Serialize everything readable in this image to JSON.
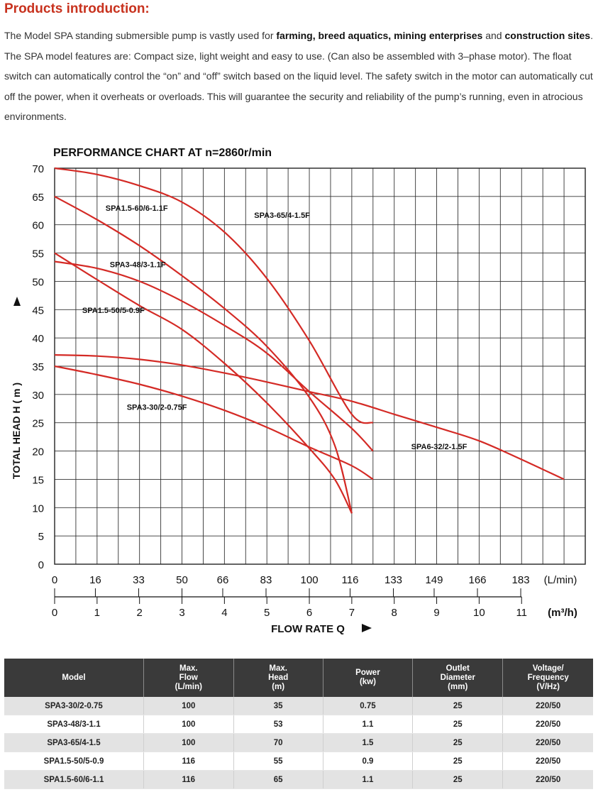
{
  "page": {
    "title": "Products introduction:",
    "intro": [
      {
        "t": "The Model SPA standing submersible pump is vastly used for ",
        "b": false
      },
      {
        "t": "farming, breed aquatics, mining enterprises",
        "b": true
      },
      {
        "t": " and ",
        "b": false
      },
      {
        "t": "construction sites",
        "b": true
      },
      {
        "t": ". The SPA model features are: Compact size, light weight and easy to use. (Can also be assembled with 3–phase motor). The float switch can automatically control the “on” and “off” switch based on the liquid level. The safety switch in the motor can automatically cut off the power, when it overheats or overloads. This will guarantee the security and reliability of the pump’s running, even in atrocious environments.",
        "b": false
      }
    ]
  },
  "chart_data": {
    "type": "line",
    "title": "PERFORMANCE CHART AT n=2860r/min",
    "xlabel": "FLOW RATE Q",
    "ylabel": "TOTAL HEAD H ( m )",
    "xlim": [
      0,
      12.5
    ],
    "ylim": [
      0,
      70
    ],
    "grid": true,
    "x_unit_m3h": "(m³/h)",
    "x_unit_lmin": "(L/min)",
    "x_ticks_m3h": [
      "0",
      "1",
      "2",
      "3",
      "4",
      "5",
      "6",
      "7",
      "8",
      "9",
      "10",
      "11"
    ],
    "x_ticks_lmin": [
      "0",
      "16",
      "33",
      "50",
      "66",
      "83",
      "100",
      "116",
      "133",
      "149",
      "166",
      "183"
    ],
    "y_ticks": [
      "0",
      "5",
      "10",
      "15",
      "20",
      "25",
      "30",
      "35",
      "40",
      "45",
      "50",
      "55",
      "60",
      "65",
      "70"
    ],
    "line_color": "#d42a25",
    "series": [
      {
        "name": "SPA3-65/4-1.5F",
        "label_at": [
          4.7,
          61.2
        ],
        "points": [
          [
            0,
            70
          ],
          [
            1,
            68.9
          ],
          [
            2,
            66.9
          ],
          [
            3,
            64
          ],
          [
            4,
            58.7
          ],
          [
            5,
            50.5
          ],
          [
            6,
            39.5
          ],
          [
            7,
            26.5
          ],
          [
            7.5,
            25
          ]
        ]
      },
      {
        "name": "SPA1.5-60/6-1.1F",
        "label_at": [
          1.2,
          62.5
        ],
        "points": [
          [
            0,
            65
          ],
          [
            1,
            60.9
          ],
          [
            2,
            56.3
          ],
          [
            3,
            51
          ],
          [
            4,
            45.2
          ],
          [
            5,
            38.5
          ],
          [
            6,
            29.5
          ],
          [
            6.6,
            21
          ],
          [
            7,
            9
          ]
        ]
      },
      {
        "name": "SPA3-48/3-1.1F",
        "label_at": [
          1.3,
          52.5
        ],
        "points": [
          [
            0,
            53.5
          ],
          [
            1,
            52.3
          ],
          [
            2,
            50
          ],
          [
            3,
            46.5
          ],
          [
            4,
            42.2
          ],
          [
            5,
            37.3
          ],
          [
            6,
            30.5
          ],
          [
            7,
            24
          ],
          [
            7.5,
            20
          ]
        ]
      },
      {
        "name": "SPA1.5-50/5-0.9F",
        "label_at": [
          0.65,
          44.4
        ],
        "points": [
          [
            0,
            55
          ],
          [
            1,
            50.3
          ],
          [
            2,
            45.7
          ],
          [
            3,
            41.5
          ],
          [
            4,
            35.5
          ],
          [
            5,
            28.5
          ],
          [
            6,
            20.5
          ],
          [
            6.6,
            15
          ],
          [
            7,
            9
          ]
        ]
      },
      {
        "name": "SPA3-30/2-0.75F",
        "label_at": [
          1.7,
          27.3
        ],
        "points": [
          [
            0,
            35
          ],
          [
            1,
            33.5
          ],
          [
            2,
            31.8
          ],
          [
            3,
            29.7
          ],
          [
            4,
            27.2
          ],
          [
            5,
            24.2
          ],
          [
            6,
            20.7
          ],
          [
            7,
            17.4
          ],
          [
            7.5,
            15
          ]
        ]
      },
      {
        "name": "SPA6-32/2-1.5F",
        "label_at": [
          8.4,
          20.3
        ],
        "points": [
          [
            0,
            37
          ],
          [
            1,
            36.8
          ],
          [
            2,
            36.2
          ],
          [
            3,
            35.2
          ],
          [
            4,
            33.8
          ],
          [
            5,
            32.2
          ],
          [
            6,
            30.5
          ],
          [
            7,
            28.8
          ],
          [
            8,
            26.5
          ],
          [
            9,
            24.2
          ],
          [
            10,
            21.8
          ],
          [
            11,
            18.5
          ],
          [
            12,
            15
          ]
        ]
      }
    ]
  },
  "table": {
    "headers": [
      [
        "Model"
      ],
      [
        "Max.",
        "Flow",
        "(L/min)"
      ],
      [
        "Max.",
        "Head",
        "(m)"
      ],
      [
        "Power",
        "(kw)"
      ],
      [
        "Outlet",
        "Diameter",
        "(mm)"
      ],
      [
        "Voltage/",
        "Frequency",
        "(V/Hz)"
      ]
    ],
    "rows": [
      [
        "SPA3-30/2-0.75",
        "100",
        "35",
        "0.75",
        "25",
        "220/50"
      ],
      [
        "SPA3-48/3-1.1",
        "100",
        "53",
        "1.1",
        "25",
        "220/50"
      ],
      [
        "SPA3-65/4-1.5",
        "100",
        "70",
        "1.5",
        "25",
        "220/50"
      ],
      [
        "SPA1.5-50/5-0.9",
        "116",
        "55",
        "0.9",
        "25",
        "220/50"
      ],
      [
        "SPA1.5-60/6-1.1",
        "116",
        "65",
        "1.1",
        "25",
        "220/50"
      ]
    ]
  }
}
